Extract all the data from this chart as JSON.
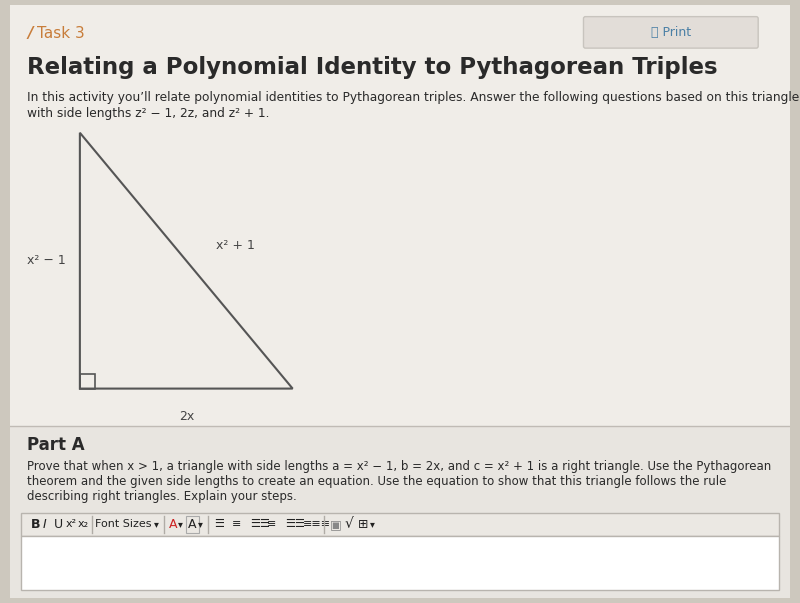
{
  "bg_color": "#cdc8be",
  "page_bg": "#f0ede8",
  "title_task": "Task 3",
  "title_task_color": "#c87d3a",
  "main_title": "Relating a Polynomial Identity to Pythagorean Triples",
  "subtitle_line1": "In this activity you’ll relate polynomial identities to Pythagorean triples. Answer the following questions based on this triangle",
  "subtitle_line2": "with side lengths z² − 1, 2z, and z² + 1.",
  "triangle_label_left": "x² − 1",
  "triangle_label_bottom": "2x",
  "triangle_label_hyp": "x² + 1",
  "part_a_title": "Part A",
  "part_a_line1": "Prove that when x > 1, a triangle with side lengths a = x² − 1, b = 2x, and c = x² + 1 is a right triangle. Use the Pythagorean",
  "part_a_line2": "theorem and the given side lengths to create an equation. Use the equation to show that this triangle follows the rule",
  "part_a_line3": "describing right triangles. Explain your steps.",
  "line_color": "#555555",
  "text_color": "#2a2a2a",
  "label_color": "#444444",
  "part_a_bg": "#e8e5e0",
  "toolbar_bg": "#ebe8e3",
  "input_bg": "#ffffff",
  "print_bg": "#e2ddd8",
  "print_color": "#4a7fa5",
  "separator_color": "#c0bbb5"
}
